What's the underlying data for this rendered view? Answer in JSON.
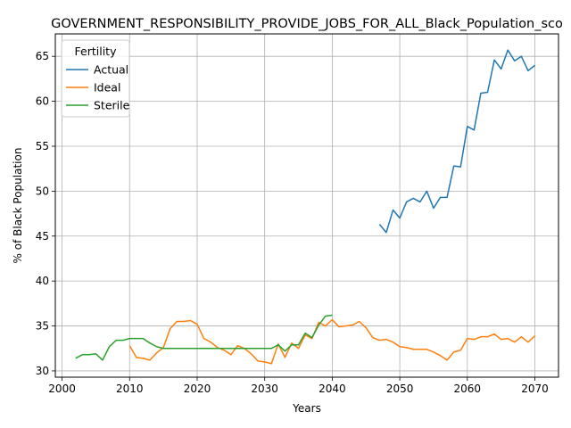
{
  "chart_data": {
    "type": "line",
    "title": "GOVERNMENT_RESPONSIBILITY_PROVIDE_JOBS_FOR_ALL_Black_Population_sco",
    "xlabel": "Years",
    "ylabel": "% of Black Population",
    "xlim": [
      1999,
      2073.5
    ],
    "ylim": [
      29.3,
      67.5
    ],
    "xticks": [
      2000,
      2010,
      2020,
      2030,
      2040,
      2050,
      2060,
      2070
    ],
    "yticks": [
      30,
      35,
      40,
      45,
      50,
      55,
      60,
      65
    ],
    "grid": true,
    "legend": {
      "title": "Fertility",
      "placement": "upper-left"
    },
    "series": [
      {
        "name": "Actual",
        "color": "#1f77b4",
        "x": [
          2047,
          2048,
          2049,
          2050,
          2051,
          2052,
          2053,
          2054,
          2055,
          2056,
          2057,
          2058,
          2059,
          2060,
          2061,
          2062,
          2063,
          2064,
          2065,
          2066,
          2067,
          2068,
          2069,
          2070
        ],
        "values": [
          46.3,
          45.4,
          47.9,
          47.0,
          48.8,
          49.2,
          48.8,
          50.0,
          48.1,
          49.3,
          49.3,
          52.8,
          52.7,
          57.2,
          56.8,
          60.9,
          61.0,
          64.6,
          63.6,
          65.7,
          64.5,
          65.0,
          63.4,
          64.0
        ]
      },
      {
        "name": "Ideal",
        "color": "#ff7f0e",
        "x": [
          2010,
          2011,
          2012,
          2013,
          2014,
          2015,
          2016,
          2017,
          2018,
          2019,
          2020,
          2021,
          2022,
          2023,
          2024,
          2025,
          2026,
          2027,
          2028,
          2029,
          2030,
          2031,
          2032,
          2033,
          2034,
          2035,
          2036,
          2037,
          2038,
          2039,
          2040,
          2041,
          2042,
          2043,
          2044,
          2045,
          2046,
          2047,
          2048,
          2049,
          2050,
          2051,
          2052,
          2053,
          2054,
          2055,
          2056,
          2057,
          2058,
          2059,
          2060,
          2061,
          2062,
          2063,
          2064,
          2065,
          2066,
          2067,
          2068,
          2069,
          2070
        ],
        "values": [
          32.8,
          31.5,
          31.4,
          31.2,
          32.0,
          32.6,
          34.7,
          35.5,
          35.5,
          35.6,
          35.2,
          33.6,
          33.2,
          32.6,
          32.3,
          31.8,
          32.8,
          32.5,
          31.9,
          31.1,
          31.0,
          30.8,
          33.0,
          31.5,
          33.1,
          32.5,
          34.0,
          33.6,
          35.4,
          35.0,
          35.7,
          34.9,
          35.0,
          35.1,
          35.5,
          34.8,
          33.7,
          33.4,
          33.5,
          33.2,
          32.7,
          32.6,
          32.4,
          32.4,
          32.4,
          32.1,
          31.7,
          31.2,
          32.1,
          32.3,
          33.6,
          33.5,
          33.8,
          33.8,
          34.1,
          33.5,
          33.6,
          33.2,
          33.8,
          33.2,
          33.9
        ]
      },
      {
        "name": "Sterile",
        "color": "#2ca02c",
        "x": [
          2002,
          2003,
          2004,
          2005,
          2006,
          2007,
          2008,
          2009,
          2010,
          2011,
          2012,
          2013,
          2014,
          2015,
          2016,
          2017,
          2018,
          2019,
          2020,
          2021,
          2022,
          2023,
          2024,
          2025,
          2026,
          2027,
          2028,
          2029,
          2030,
          2031,
          2032,
          2033,
          2034,
          2035,
          2036,
          2037,
          2038,
          2039,
          2040
        ],
        "values": [
          31.4,
          31.8,
          31.8,
          31.9,
          31.2,
          32.7,
          33.4,
          33.4,
          33.6,
          33.6,
          33.6,
          33.1,
          32.7,
          32.5,
          32.5,
          32.5,
          32.5,
          32.5,
          32.5,
          32.5,
          32.5,
          32.5,
          32.5,
          32.5,
          32.5,
          32.5,
          32.5,
          32.5,
          32.5,
          32.5,
          32.9,
          32.2,
          32.9,
          32.9,
          34.2,
          33.7,
          35.1,
          36.1,
          36.2
        ]
      }
    ]
  }
}
